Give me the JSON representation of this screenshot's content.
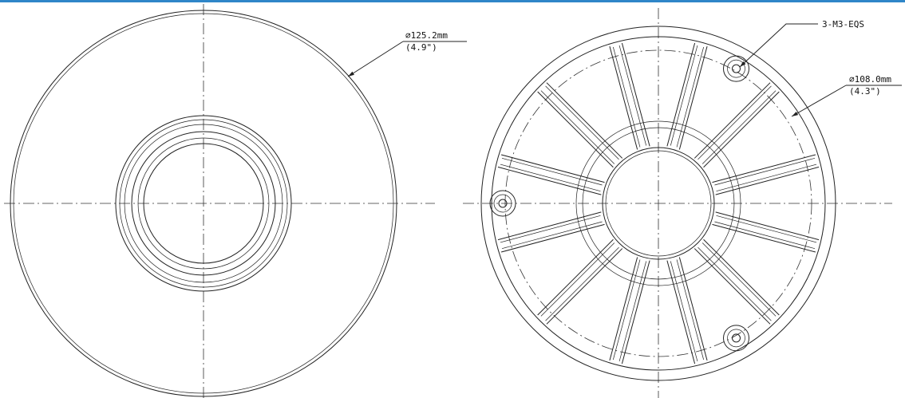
{
  "dimensions": [
    {
      "label": "∅125.2mm",
      "imperial": "(4.9\")"
    },
    {
      "label": "∅108.0mm",
      "imperial": "(4.3\")"
    }
  ],
  "callouts": [
    {
      "label": "3-M3-EQS"
    }
  ]
}
